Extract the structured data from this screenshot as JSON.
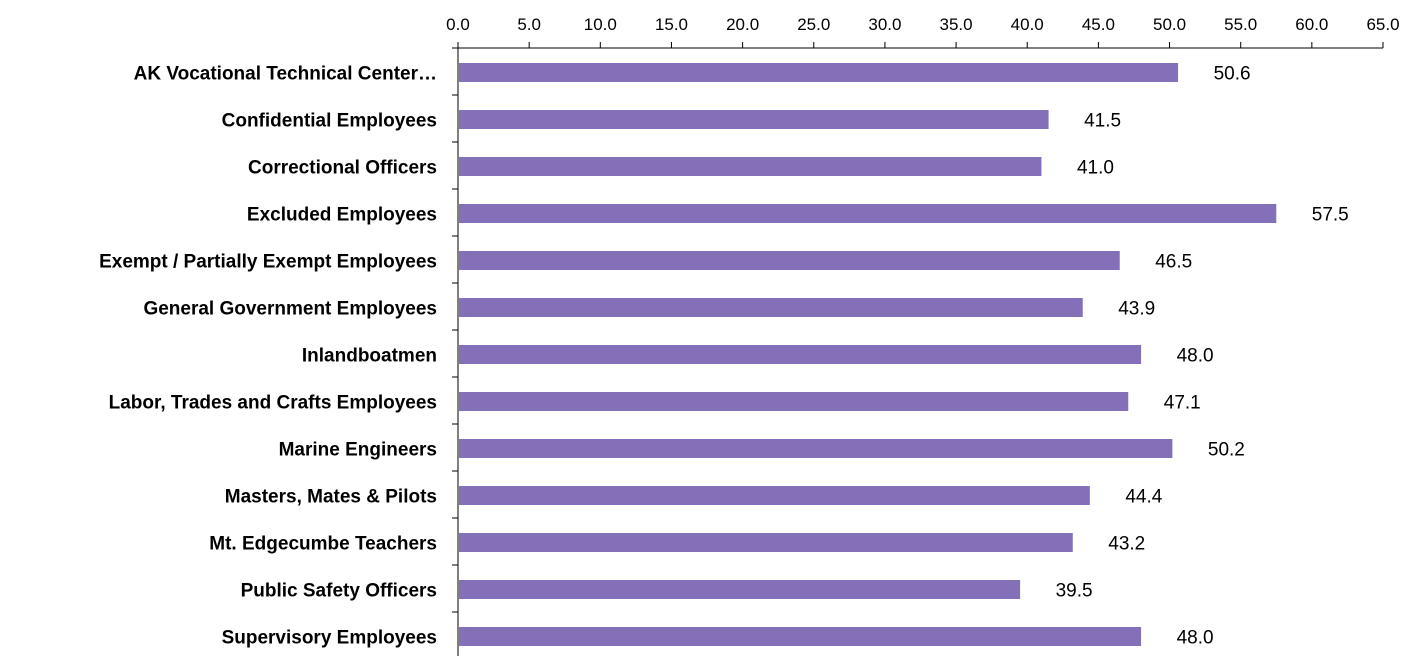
{
  "chart_data": {
    "type": "bar",
    "orientation": "horizontal",
    "x_axis_position": "top",
    "categories": [
      "AK Vocational Technical Center…",
      "Confidential Employees",
      "Correctional Officers",
      "Excluded Employees",
      "Exempt / Partially Exempt Employees",
      "General Government Employees",
      "Inlandboatmen",
      "Labor, Trades and Crafts Employees",
      "Marine Engineers",
      "Masters, Mates & Pilots",
      "Mt. Edgecumbe Teachers",
      "Public Safety Officers",
      "Supervisory Employees"
    ],
    "values": [
      50.6,
      41.5,
      41.0,
      57.5,
      46.5,
      43.9,
      48.0,
      47.1,
      50.2,
      44.4,
      43.2,
      39.5,
      48.0
    ],
    "data_labels": [
      "50.6",
      "41.5",
      "41.0",
      "57.5",
      "46.5",
      "43.9",
      "48.0",
      "47.1",
      "50.2",
      "44.4",
      "43.2",
      "39.5",
      "48.0"
    ],
    "xlim": [
      0,
      65
    ],
    "x_ticks": [
      0,
      5,
      10,
      15,
      20,
      25,
      30,
      35,
      40,
      45,
      50,
      55,
      60,
      65
    ],
    "x_tick_labels": [
      "0.0",
      "5.0",
      "10.0",
      "15.0",
      "20.0",
      "25.0",
      "30.0",
      "35.0",
      "40.0",
      "45.0",
      "50.0",
      "55.0",
      "60.0",
      "65.0"
    ],
    "title": "",
    "xlabel": "",
    "ylabel": "",
    "grid": false,
    "legend": "none",
    "bar_color": "#8470B8",
    "axis_color": "#000000"
  }
}
